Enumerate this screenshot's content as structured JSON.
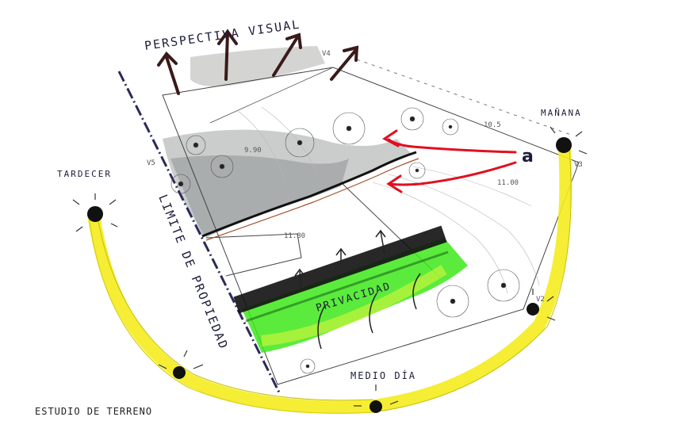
{
  "title": "PERSPECTIVA VISUAL",
  "caption": "ESTUDIO DE TERRENO",
  "labels": {
    "tardecer": "TARDECER",
    "manana": "MAÑANA",
    "medio_dia": "MEDIO DÍA",
    "privacidad": "PRIVACIDAD",
    "limite": "LIMITE DE PROPIEDAD"
  },
  "vertices": {
    "v2": "V2",
    "v3": "V3",
    "v4": "V4",
    "v5": "V5"
  },
  "levels": {
    "l1": "9.90",
    "l2": "10.5",
    "l3": "11.00",
    "l4": "11.80"
  },
  "wind_mark": "a",
  "colors": {
    "sun_path": "#f4ec1e",
    "hedge": "#3ee81a",
    "wind_arrows": "#e01020",
    "ink": "#1c1c3a"
  },
  "icons": [
    "sun-icon",
    "tree-icon",
    "view-arrow-icon",
    "wind-arrow-icon"
  ]
}
